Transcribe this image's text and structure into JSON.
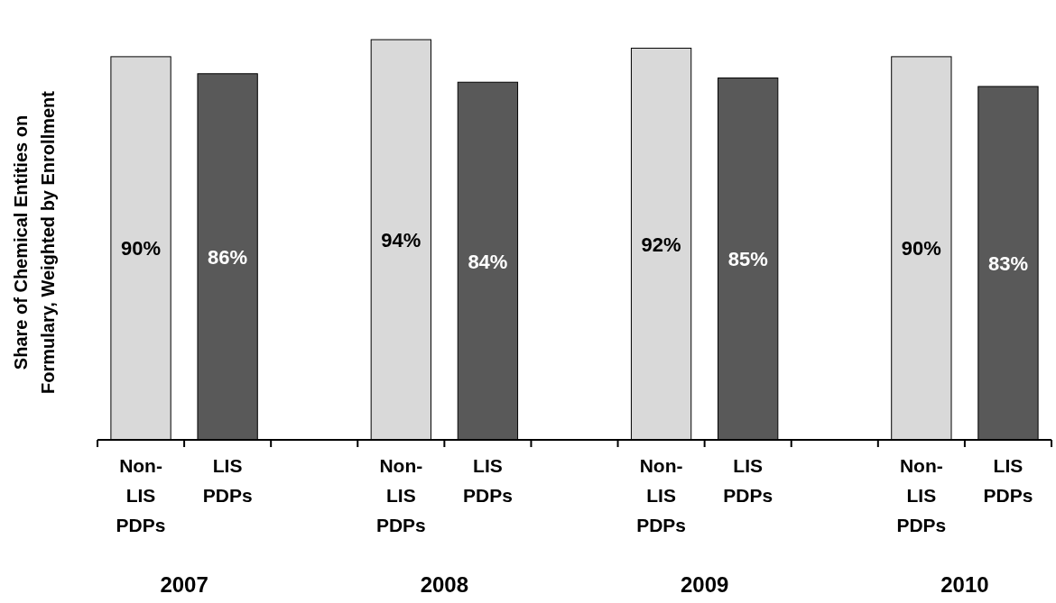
{
  "chart_data": {
    "type": "bar",
    "ylabel": "Share of Chemical Entities on\nFormulary, Weighted by Enrollment",
    "categories": [
      "2007",
      "2008",
      "2009",
      "2010"
    ],
    "legend": "bottom",
    "series": [
      {
        "name": "Non-LIS PDPs",
        "color": "#d9d9d9",
        "values": [
          90,
          94,
          92,
          90
        ],
        "value_labels": [
          "90%",
          "94%",
          "92%",
          "90%"
        ]
      },
      {
        "name": "LIS PDPs",
        "color": "#595959",
        "values": [
          86,
          84,
          85,
          83
        ],
        "value_labels": [
          "86%",
          "84%",
          "85%",
          "83%"
        ]
      }
    ]
  }
}
